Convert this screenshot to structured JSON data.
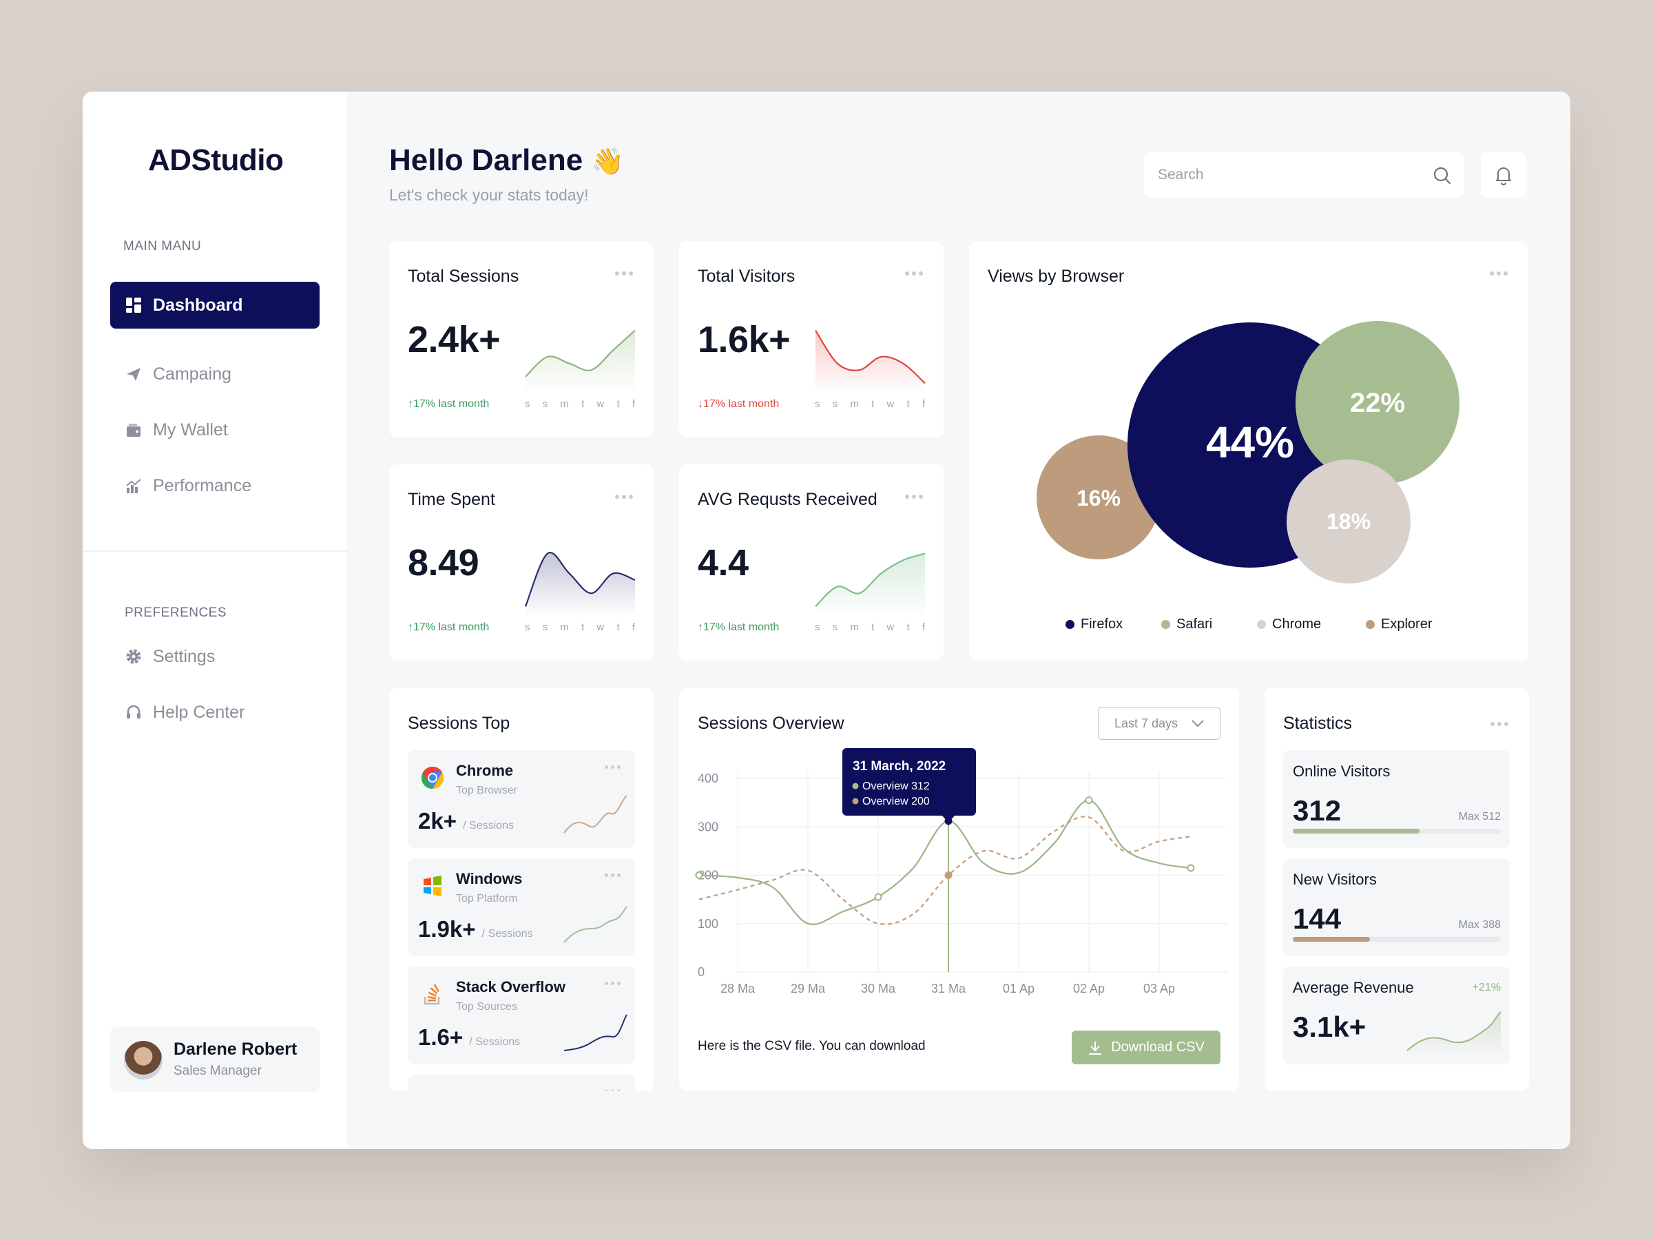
{
  "app": {
    "logo": "ADStudio"
  },
  "sidebar": {
    "main_label": "MAIN MANU",
    "items": [
      {
        "label": "Dashboard",
        "icon": "dashboard-icon",
        "active": true
      },
      {
        "label": "Campaing",
        "icon": "send-icon"
      },
      {
        "label": "My Wallet",
        "icon": "wallet-icon"
      },
      {
        "label": "Performance",
        "icon": "chart-icon"
      }
    ],
    "pref_label": "PREFERENCES",
    "pref_items": [
      {
        "label": "Settings",
        "icon": "gear-icon"
      },
      {
        "label": "Help Center",
        "icon": "headset-icon"
      }
    ],
    "profile": {
      "name": "Darlene Robert",
      "role": "Sales Manager"
    }
  },
  "header": {
    "greeting": "Hello Darlene",
    "emoji": "👋",
    "subtitle": "Let's check your stats today!",
    "search_placeholder": "Search"
  },
  "kpis": [
    {
      "title": "Total Sessions",
      "value": "2.4k+",
      "trend": "↑17% last month",
      "direction": "up",
      "color": "#8fb47e",
      "series": [
        2,
        5,
        4,
        3,
        6,
        9
      ]
    },
    {
      "title": "Total Visitors",
      "value": "1.6k+",
      "trend": "↓17% last month",
      "direction": "down",
      "color": "#e0453c",
      "series": [
        9,
        4,
        3,
        5,
        4,
        1
      ]
    },
    {
      "title": "Time Spent",
      "value": "8.49",
      "trend": "↑17% last month",
      "direction": "up",
      "color": "#2a2d6e",
      "series": [
        1,
        9,
        6,
        3,
        6,
        5
      ]
    },
    {
      "title": "AVG Requsts Received",
      "value": "4.4",
      "trend": "↑17% last month",
      "direction": "up",
      "color": "#7bbf8c",
      "series": [
        1,
        4,
        3,
        6,
        8,
        9
      ]
    }
  ],
  "day_labels": [
    "s",
    "s",
    "m",
    "t",
    "w",
    "t",
    "f"
  ],
  "browser": {
    "title": "Views by Browser",
    "bubbles": [
      {
        "label": "44%",
        "value": 44,
        "color": "#0d0f5b"
      },
      {
        "label": "22%",
        "value": 22,
        "color": "#a6bd92"
      },
      {
        "label": "18%",
        "value": 18,
        "color": "#d9d1cb"
      },
      {
        "label": "16%",
        "value": 16,
        "color": "#bc9c7c"
      }
    ],
    "legend": [
      {
        "name": "Firefox",
        "color": "#0d0f5b"
      },
      {
        "name": "Safari",
        "color": "#a6bd92"
      },
      {
        "name": "Chrome",
        "color": "#d9d1cb"
      },
      {
        "name": "Explorer",
        "color": "#bc9c7c"
      }
    ]
  },
  "sessions_top": {
    "title": "Sessions Top",
    "items": [
      {
        "name": "Chrome",
        "sub": "Top Browser",
        "value": "2k+",
        "unit": "/ Sessions",
        "icon": "chrome-icon",
        "color": "#c9a98a"
      },
      {
        "name": "Windows",
        "sub": "Top Platform",
        "value": "1.9k+",
        "unit": "/ Sessions",
        "icon": "windows-icon",
        "color": "#a6bd92"
      },
      {
        "name": "Stack Overflow",
        "sub": "Top Sources",
        "value": "1.6+",
        "unit": "/ Sessions",
        "icon": "stackoverflow-icon",
        "color": "#2a2d6e"
      }
    ]
  },
  "overview": {
    "title": "Sessions Overview",
    "range": "Last 7 days",
    "tooltip": {
      "date": "31 March, 2022",
      "line1": "Overview 312",
      "line2": "Overview 200"
    },
    "note": "Here is the CSV file. You can download",
    "download": "Download CSV"
  },
  "chart_data": {
    "type": "line",
    "categories": [
      "28 Ma",
      "29 Ma",
      "30 Ma",
      "31 Ma",
      "01 Ap",
      "02 Ap",
      "03 Ap"
    ],
    "y_ticks": [
      "400",
      "300",
      "200",
      "100",
      "0"
    ],
    "ylim": [
      0,
      400
    ],
    "grid": true,
    "x": [
      -0.55,
      0,
      0.5,
      1,
      1.5,
      2,
      2.5,
      3,
      3.5,
      4,
      4.5,
      5,
      5.5,
      6,
      6.45
    ],
    "series": [
      {
        "values": [
          200,
          195,
          175,
          100,
          125,
          155,
          215,
          312,
          225,
          205,
          265,
          355,
          255,
          225,
          215
        ],
        "color": "#9db88a",
        "style": "solid"
      },
      {
        "values": [
          150,
          170,
          190,
          210,
          150,
          100,
          120,
          200,
          250,
          235,
          290,
          320,
          250,
          270,
          280
        ],
        "color": "#c69e7e",
        "style": "dashed"
      }
    ]
  },
  "statistics": {
    "title": "Statistics",
    "items": [
      {
        "label": "Online Visitors",
        "value": "312",
        "max": "Max 512",
        "fill": 0.61,
        "color": "#a6bd92"
      },
      {
        "label": "New Visitors",
        "value": "144",
        "max": "Max 388",
        "fill": 0.37,
        "color": "#bc9c7c"
      },
      {
        "label": "Average Revenue",
        "value": "3.1k+",
        "change": "+21%",
        "color": "#a6bd92"
      }
    ]
  }
}
